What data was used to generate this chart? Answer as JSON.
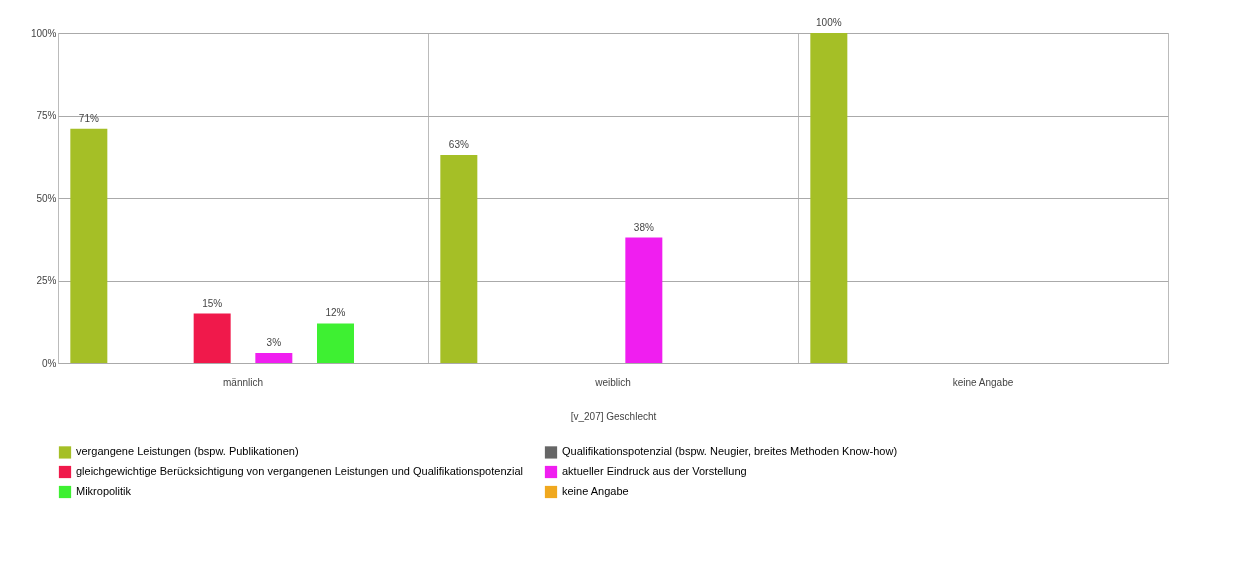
{
  "chart_data": {
    "type": "bar",
    "xlabel": "[v_207] Geschlecht",
    "categories": [
      "männlich",
      "weiblich",
      "keine Angabe"
    ],
    "series": [
      {
        "name": "vergangene Leistungen (bspw. Publikationen)",
        "color": "#a5bf26",
        "values": [
          71,
          63,
          100
        ],
        "value_labels": [
          "71%",
          "63%",
          "100%"
        ]
      },
      {
        "name": "Qualifikationspotenzial (bspw. Neugier, breites Methoden Know-how)",
        "color": "#666666",
        "values": [
          0,
          0,
          0
        ],
        "value_labels": [
          null,
          null,
          null
        ]
      },
      {
        "name": "gleichgewichtige Berücksichtigung von vergangenen Leistungen und Qualifikationspotenzial",
        "color": "#f0194b",
        "values": [
          15,
          0,
          0
        ],
        "value_labels": [
          "15%",
          null,
          null
        ]
      },
      {
        "name": "aktueller Eindruck aus der Vorstellung",
        "color": "#f01ef0",
        "values": [
          3,
          38,
          0
        ],
        "value_labels": [
          "3%",
          "38%",
          null
        ]
      },
      {
        "name": "Mikropolitik",
        "color": "#3ef032",
        "values": [
          12,
          0,
          0
        ],
        "value_labels": [
          "12%",
          null,
          null
        ]
      },
      {
        "name": "keine Angabe",
        "color": "#f0a81e",
        "values": [
          0,
          0,
          0
        ],
        "value_labels": [
          null,
          null,
          null
        ]
      }
    ],
    "ylim": [
      0,
      100
    ],
    "yticks": [
      {
        "value": 0,
        "label": "0%"
      },
      {
        "value": 25,
        "label": "25%"
      },
      {
        "value": 50,
        "label": "50%"
      },
      {
        "value": 75,
        "label": "75%"
      },
      {
        "value": 100,
        "label": "100%"
      }
    ],
    "grid": true,
    "legend": "bottom"
  }
}
